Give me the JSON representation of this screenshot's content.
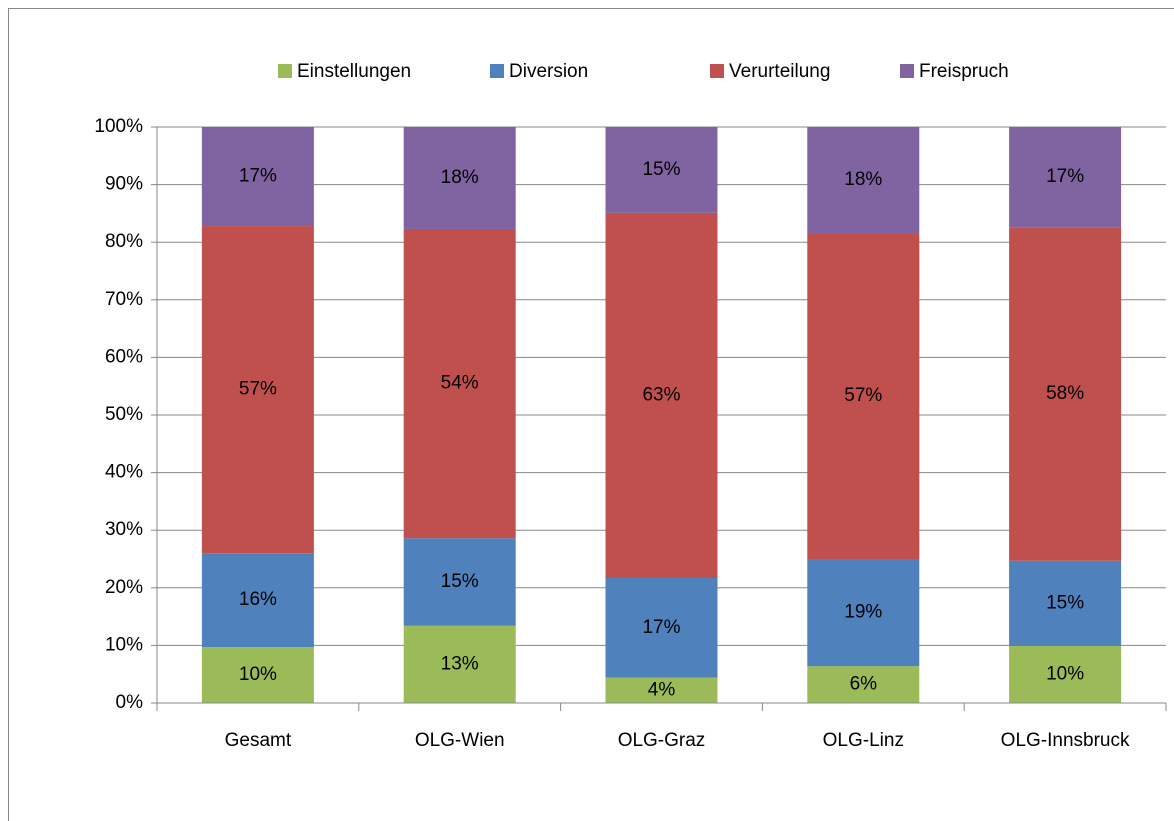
{
  "chart_data": {
    "type": "stacked_bar",
    "categories": [
      "Gesamt",
      "OLG-Wien",
      "OLG-Graz",
      "OLG-Linz",
      "OLG-Innsbruck"
    ],
    "series": [
      {
        "name": "Einstellungen",
        "color": "#9bbb59",
        "values": [
          9.7,
          13.4,
          4.4,
          6.4,
          9.9
        ],
        "value_labels": [
          "10%",
          "13%",
          "4%",
          "6%",
          "10%"
        ]
      },
      {
        "name": "Diversion",
        "color": "#4f81bd",
        "values": [
          16.3,
          15.2,
          17.3,
          18.6,
          14.8
        ],
        "value_labels": [
          "16%",
          "15%",
          "17%",
          "19%",
          "15%"
        ]
      },
      {
        "name": "Verurteilung",
        "color": "#c0504d",
        "values": [
          56.8,
          53.7,
          63.4,
          56.6,
          57.9
        ],
        "value_labels": [
          "57%",
          "54%",
          "63%",
          "57%",
          "58%"
        ]
      },
      {
        "name": "Freispruch",
        "color": "#8064a2",
        "values": [
          17.2,
          17.7,
          14.9,
          18.4,
          17.4
        ],
        "value_labels": [
          "17%",
          "18%",
          "15%",
          "18%",
          "17%"
        ]
      }
    ],
    "ylim": [
      0,
      100
    ],
    "yticks": [
      {
        "value": 0,
        "label": "0%"
      },
      {
        "value": 10,
        "label": "10%"
      },
      {
        "value": 20,
        "label": "20%"
      },
      {
        "value": 30,
        "label": "30%"
      },
      {
        "value": 40,
        "label": "40%"
      },
      {
        "value": 50,
        "label": "50%"
      },
      {
        "value": 60,
        "label": "60%"
      },
      {
        "value": 70,
        "label": "70%"
      },
      {
        "value": 80,
        "label": "80%"
      },
      {
        "value": 90,
        "label": "90%"
      },
      {
        "value": 100,
        "label": "100%"
      }
    ],
    "grid": true,
    "legend": "top"
  }
}
